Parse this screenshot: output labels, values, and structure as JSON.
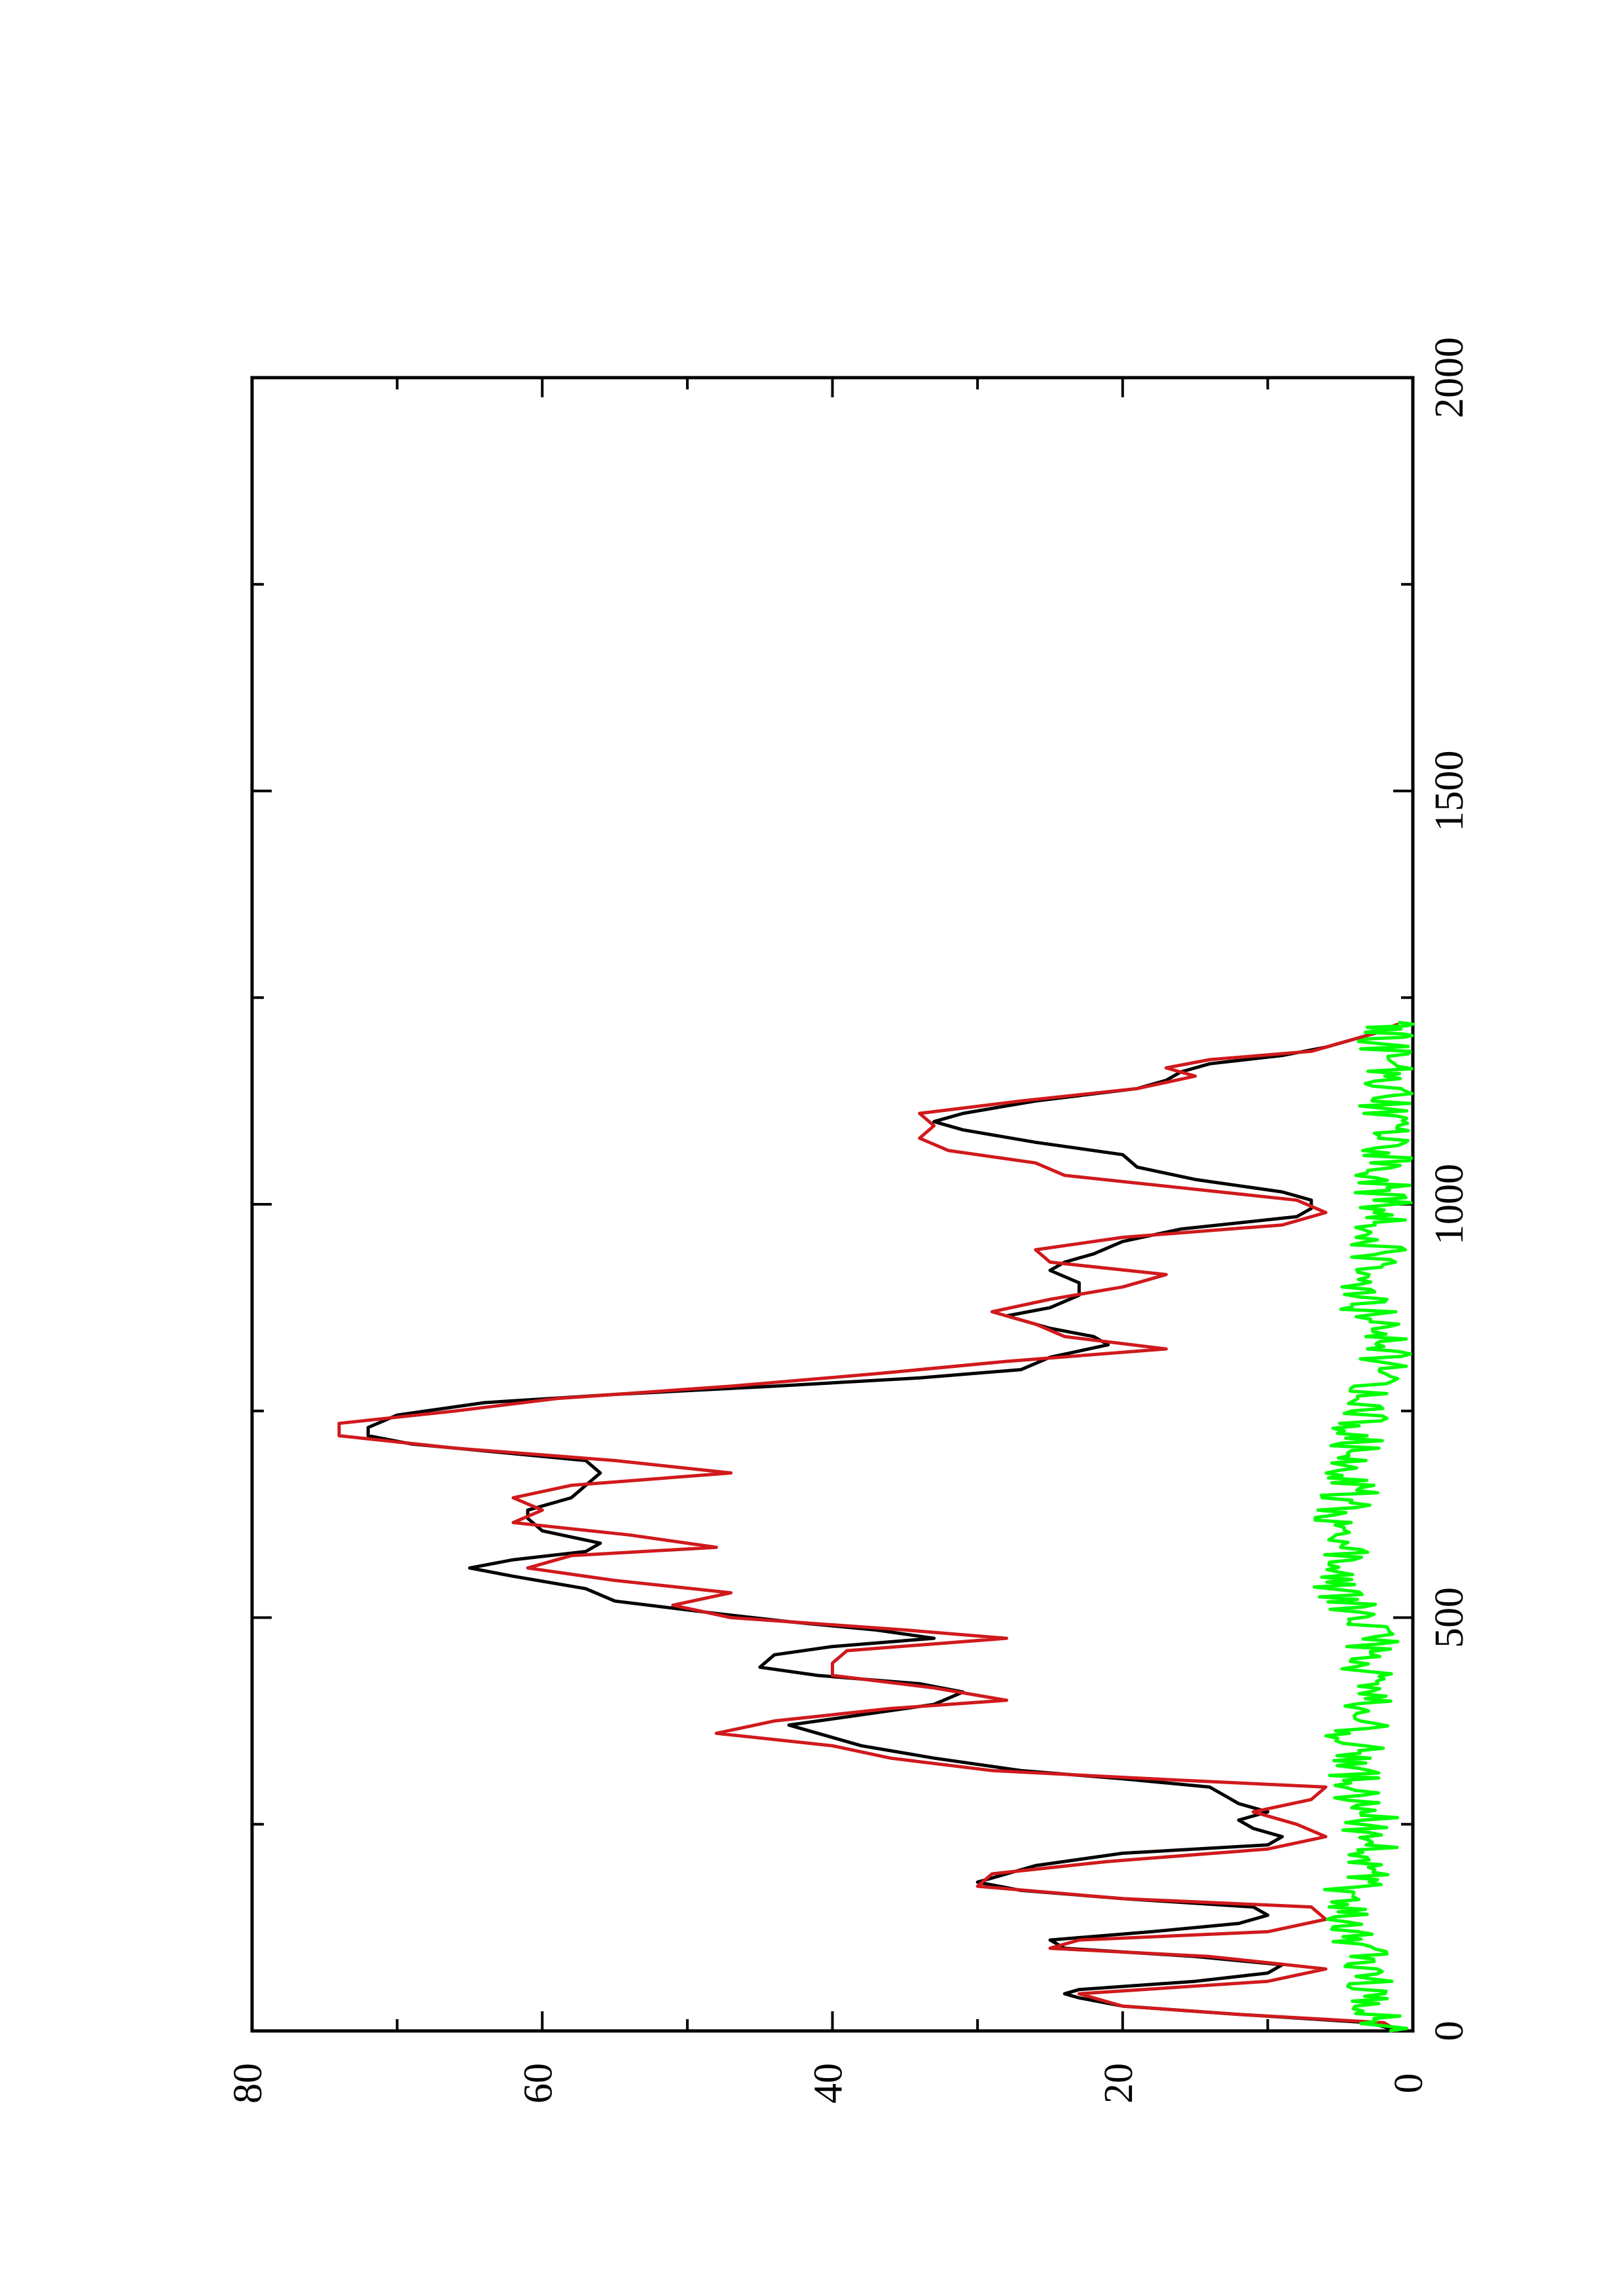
{
  "chart_data": {
    "type": "line",
    "orientation": "rotated-90-ccw",
    "title": "",
    "xlabel": "",
    "ylabel": "",
    "xlim": [
      0,
      2000
    ],
    "ylim": [
      0,
      80
    ],
    "x_ticks": [
      "0",
      "500",
      "1000",
      "1500",
      "2000"
    ],
    "y_ticks": [
      "0",
      "20",
      "40",
      "60",
      "80"
    ],
    "grid": false,
    "legend": "none",
    "series": [
      {
        "color": "#000000",
        "points": [
          [
            0,
            1
          ],
          [
            10,
            3
          ],
          [
            20,
            12
          ],
          [
            30,
            20
          ],
          [
            40,
            23
          ],
          [
            45,
            24
          ],
          [
            50,
            23
          ],
          [
            60,
            15
          ],
          [
            70,
            10
          ],
          [
            80,
            9
          ],
          [
            90,
            15
          ],
          [
            100,
            24
          ],
          [
            110,
            25
          ],
          [
            120,
            18
          ],
          [
            130,
            12
          ],
          [
            140,
            10
          ],
          [
            150,
            11
          ],
          [
            160,
            20
          ],
          [
            170,
            27
          ],
          [
            180,
            30
          ],
          [
            190,
            28
          ],
          [
            200,
            26
          ],
          [
            215,
            20
          ],
          [
            225,
            10
          ],
          [
            235,
            9
          ],
          [
            245,
            11
          ],
          [
            255,
            12
          ],
          [
            265,
            10
          ],
          [
            275,
            12
          ],
          [
            285,
            13
          ],
          [
            295,
            14
          ],
          [
            305,
            20
          ],
          [
            315,
            27
          ],
          [
            330,
            33
          ],
          [
            345,
            38
          ],
          [
            360,
            41
          ],
          [
            370,
            43
          ],
          [
            380,
            39
          ],
          [
            395,
            33
          ],
          [
            410,
            31
          ],
          [
            420,
            34
          ],
          [
            430,
            41
          ],
          [
            440,
            45
          ],
          [
            455,
            44
          ],
          [
            465,
            40
          ],
          [
            475,
            33
          ],
          [
            485,
            37
          ],
          [
            495,
            43
          ],
          [
            505,
            48
          ],
          [
            520,
            55
          ],
          [
            535,
            57
          ],
          [
            550,
            62
          ],
          [
            560,
            65
          ],
          [
            570,
            62
          ],
          [
            580,
            57
          ],
          [
            590,
            56
          ],
          [
            605,
            60
          ],
          [
            620,
            61
          ],
          [
            630,
            61
          ],
          [
            645,
            58
          ],
          [
            660,
            57
          ],
          [
            675,
            56
          ],
          [
            690,
            57
          ],
          [
            700,
            63
          ],
          [
            710,
            69
          ],
          [
            720,
            72
          ],
          [
            730,
            72
          ],
          [
            745,
            70
          ],
          [
            760,
            64
          ],
          [
            770,
            55
          ],
          [
            780,
            44
          ],
          [
            790,
            34
          ],
          [
            800,
            27
          ],
          [
            815,
            25
          ],
          [
            830,
            21
          ],
          [
            840,
            22
          ],
          [
            850,
            25
          ],
          [
            865,
            28
          ],
          [
            875,
            25
          ],
          [
            890,
            23
          ],
          [
            905,
            23
          ],
          [
            920,
            25
          ],
          [
            930,
            24
          ],
          [
            940,
            22
          ],
          [
            955,
            20
          ],
          [
            970,
            16
          ],
          [
            985,
            8
          ],
          [
            995,
            7
          ],
          [
            1005,
            7
          ],
          [
            1015,
            9
          ],
          [
            1030,
            15
          ],
          [
            1045,
            19
          ],
          [
            1060,
            20
          ],
          [
            1075,
            26
          ],
          [
            1090,
            31
          ],
          [
            1100,
            33
          ],
          [
            1110,
            31
          ],
          [
            1125,
            26
          ],
          [
            1140,
            19
          ],
          [
            1150,
            17
          ],
          [
            1160,
            16
          ],
          [
            1170,
            14
          ],
          [
            1180,
            9
          ],
          [
            1190,
            6
          ],
          [
            1200,
            4
          ],
          [
            1210,
            2
          ],
          [
            1218,
            1
          ]
        ]
      },
      {
        "color": "#d0191c",
        "points": [
          [
            0,
            1
          ],
          [
            10,
            2
          ],
          [
            20,
            12
          ],
          [
            30,
            20
          ],
          [
            45,
            23
          ],
          [
            60,
            10
          ],
          [
            75,
            6
          ],
          [
            90,
            14
          ],
          [
            100,
            25
          ],
          [
            110,
            23
          ],
          [
            120,
            10
          ],
          [
            135,
            6
          ],
          [
            150,
            7
          ],
          [
            160,
            20
          ],
          [
            175,
            30
          ],
          [
            190,
            29
          ],
          [
            205,
            21
          ],
          [
            220,
            10
          ],
          [
            235,
            6
          ],
          [
            250,
            8
          ],
          [
            265,
            11
          ],
          [
            280,
            7
          ],
          [
            295,
            6
          ],
          [
            305,
            18
          ],
          [
            315,
            29
          ],
          [
            330,
            36
          ],
          [
            345,
            40
          ],
          [
            360,
            48
          ],
          [
            375,
            44
          ],
          [
            390,
            36
          ],
          [
            400,
            28
          ],
          [
            415,
            33
          ],
          [
            430,
            40
          ],
          [
            445,
            40
          ],
          [
            460,
            39
          ],
          [
            475,
            28
          ],
          [
            485,
            35
          ],
          [
            500,
            47
          ],
          [
            515,
            51
          ],
          [
            530,
            47
          ],
          [
            545,
            55
          ],
          [
            560,
            61
          ],
          [
            575,
            58
          ],
          [
            585,
            48
          ],
          [
            600,
            54
          ],
          [
            615,
            62
          ],
          [
            630,
            60
          ],
          [
            645,
            62
          ],
          [
            660,
            58
          ],
          [
            675,
            47
          ],
          [
            690,
            55
          ],
          [
            705,
            66
          ],
          [
            720,
            74
          ],
          [
            735,
            74
          ],
          [
            750,
            66
          ],
          [
            765,
            59
          ],
          [
            780,
            47
          ],
          [
            795,
            37
          ],
          [
            810,
            28
          ],
          [
            825,
            17
          ],
          [
            840,
            24
          ],
          [
            855,
            26
          ],
          [
            870,
            29
          ],
          [
            885,
            25
          ],
          [
            900,
            20
          ],
          [
            915,
            17
          ],
          [
            930,
            25
          ],
          [
            945,
            26
          ],
          [
            960,
            20
          ],
          [
            975,
            9
          ],
          [
            990,
            6
          ],
          [
            1005,
            8
          ],
          [
            1020,
            16
          ],
          [
            1035,
            24
          ],
          [
            1050,
            26
          ],
          [
            1065,
            32
          ],
          [
            1080,
            34
          ],
          [
            1095,
            33
          ],
          [
            1110,
            34
          ],
          [
            1125,
            27
          ],
          [
            1140,
            19
          ],
          [
            1155,
            15
          ],
          [
            1165,
            17
          ],
          [
            1175,
            14
          ],
          [
            1185,
            7
          ],
          [
            1195,
            5
          ],
          [
            1205,
            3
          ],
          [
            1218,
            1
          ]
        ]
      },
      {
        "color": "#00ff00",
        "noise_amplitude": 2,
        "points": [
          [
            0,
            1
          ],
          [
            30,
            3
          ],
          [
            60,
            3
          ],
          [
            90,
            3
          ],
          [
            120,
            4
          ],
          [
            150,
            5
          ],
          [
            180,
            4
          ],
          [
            210,
            3
          ],
          [
            240,
            3
          ],
          [
            270,
            3
          ],
          [
            300,
            4
          ],
          [
            330,
            4
          ],
          [
            360,
            4
          ],
          [
            390,
            3
          ],
          [
            420,
            3
          ],
          [
            450,
            3
          ],
          [
            480,
            3
          ],
          [
            510,
            4
          ],
          [
            540,
            5
          ],
          [
            570,
            5
          ],
          [
            600,
            5
          ],
          [
            630,
            5
          ],
          [
            660,
            4
          ],
          [
            690,
            4
          ],
          [
            720,
            4
          ],
          [
            750,
            3
          ],
          [
            780,
            3
          ],
          [
            810,
            2
          ],
          [
            840,
            2
          ],
          [
            870,
            3
          ],
          [
            900,
            3
          ],
          [
            930,
            3
          ],
          [
            960,
            2
          ],
          [
            990,
            2
          ],
          [
            1020,
            2
          ],
          [
            1050,
            2
          ],
          [
            1080,
            2
          ],
          [
            1110,
            2
          ],
          [
            1140,
            2
          ],
          [
            1170,
            2
          ],
          [
            1200,
            2
          ],
          [
            1220,
            1
          ]
        ]
      }
    ]
  }
}
